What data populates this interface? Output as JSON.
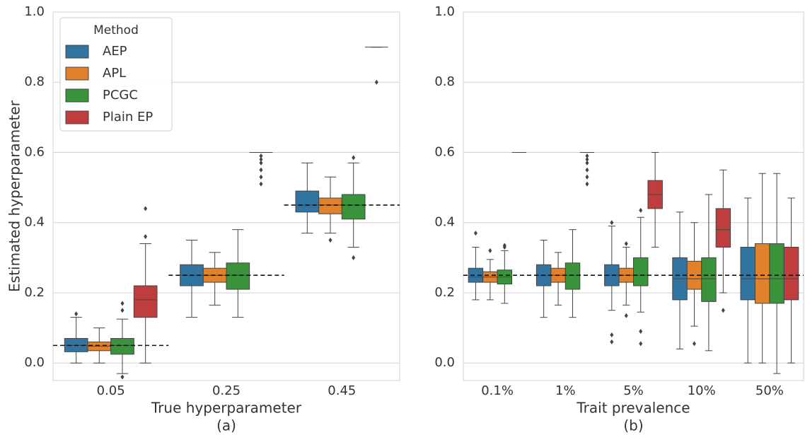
{
  "chart_data": [
    {
      "type": "box",
      "ylabel": "Estimated hyperparameter",
      "xlabel": "True hyperparameter",
      "caption": "(a)",
      "categories": [
        "0.05",
        "0.25",
        "0.45"
      ],
      "ylim": [
        -0.05,
        1.0
      ],
      "yticks": [
        {
          "value": 0,
          "label": "0.0"
        },
        0.2,
        0.4,
        0.6,
        0.8,
        {
          "value": 1,
          "label": "1.0"
        }
      ],
      "grid": true,
      "legend": "upper left",
      "legend_title": "Method",
      "reference": [
        0.05,
        0.25,
        0.45
      ],
      "series": [
        {
          "name": "AEP",
          "color": "#3274a1",
          "boxes": [
            {
              "min": 0,
              "q1": 0.032,
              "median": 0.05,
              "q3": 0.07,
              "max": 0.13,
              "outliers": [
                0.14
              ]
            },
            {
              "min": 0.13,
              "q1": 0.22,
              "median": 0.25,
              "q3": 0.28,
              "max": 0.35,
              "outliers": []
            },
            {
              "min": 0.37,
              "q1": 0.43,
              "median": 0.45,
              "q3": 0.49,
              "max": 0.57,
              "outliers": []
            }
          ]
        },
        {
          "name": "APL",
          "color": "#e1812c",
          "boxes": [
            {
              "min": 0,
              "q1": 0.035,
              "median": 0.048,
              "q3": 0.06,
              "max": 0.1,
              "outliers": []
            },
            {
              "min": 0.165,
              "q1": 0.23,
              "median": 0.25,
              "q3": 0.27,
              "max": 0.315,
              "outliers": []
            },
            {
              "min": 0.37,
              "q1": 0.425,
              "median": 0.45,
              "q3": 0.47,
              "max": 0.53,
              "outliers": [
                0.35
              ]
            }
          ]
        },
        {
          "name": "PCGC",
          "color": "#3a923a",
          "boxes": [
            {
              "min": -0.03,
              "q1": 0.025,
              "median": 0.05,
              "q3": 0.07,
              "max": 0.125,
              "outliers": [
                0.15,
                0.17,
                -0.04
              ]
            },
            {
              "min": 0.13,
              "q1": 0.21,
              "median": 0.25,
              "q3": 0.285,
              "max": 0.38,
              "outliers": []
            },
            {
              "min": 0.33,
              "q1": 0.41,
              "median": 0.45,
              "q3": 0.48,
              "max": 0.57,
              "outliers": [
                0.585,
                0.3
              ]
            }
          ]
        },
        {
          "name": "Plain EP",
          "color": "#c03d3e",
          "boxes": [
            {
              "min": 0,
              "q1": 0.13,
              "median": 0.18,
              "q3": 0.22,
              "max": 0.34,
              "outliers": [
                0.36,
                0.44
              ]
            },
            {
              "min": 0.6,
              "q1": 0.6,
              "median": 0.6,
              "q3": 0.6,
              "max": 0.6,
              "outliers": [
                0.51,
                0.53,
                0.55,
                0.57,
                0.58,
                0.59
              ]
            },
            {
              "min": 0.9,
              "q1": 0.9,
              "median": 0.9,
              "q3": 0.9,
              "max": 0.9,
              "outliers": [
                0.8
              ]
            }
          ]
        }
      ]
    },
    {
      "type": "box",
      "xlabel": "Trait prevalence",
      "caption": "(b)",
      "categories": [
        "0.1%",
        "1%",
        "5%",
        "10%",
        "50%"
      ],
      "ylim": [
        -0.05,
        1.0
      ],
      "yticks": [
        {
          "value": 0,
          "label": "0.0"
        },
        0.2,
        0.4,
        0.6,
        0.8,
        {
          "value": 1,
          "label": "1.0"
        }
      ],
      "grid": true,
      "hline": 0.25,
      "series": [
        {
          "color": "#3274a1",
          "boxes": [
            {
              "min": 0.18,
              "q1": 0.23,
              "median": 0.245,
              "q3": 0.27,
              "max": 0.33,
              "outliers": [
                0.37
              ]
            },
            {
              "min": 0.13,
              "q1": 0.22,
              "median": 0.25,
              "q3": 0.28,
              "max": 0.35,
              "outliers": []
            },
            {
              "min": 0.15,
              "q1": 0.22,
              "median": 0.25,
              "q3": 0.28,
              "max": 0.39,
              "outliers": [
                0.4,
                0.08,
                0.06
              ]
            },
            {
              "min": 0.04,
              "q1": 0.18,
              "median": 0.24,
              "q3": 0.3,
              "max": 0.43,
              "outliers": []
            },
            {
              "min": 0,
              "q1": 0.18,
              "median": 0.24,
              "q3": 0.33,
              "max": 0.47,
              "outliers": []
            }
          ]
        },
        {
          "color": "#e1812c",
          "boxes": [
            {
              "min": 0.18,
              "q1": 0.23,
              "median": 0.245,
              "q3": 0.26,
              "max": 0.295,
              "outliers": [
                0.32
              ]
            },
            {
              "min": 0.165,
              "q1": 0.23,
              "median": 0.25,
              "q3": 0.27,
              "max": 0.315,
              "outliers": []
            },
            {
              "min": 0.165,
              "q1": 0.23,
              "median": 0.25,
              "q3": 0.27,
              "max": 0.33,
              "outliers": [
                0.34,
                0.135
              ]
            },
            {
              "min": 0.105,
              "q1": 0.21,
              "median": 0.24,
              "q3": 0.29,
              "max": 0.4,
              "outliers": [
                0.055
              ]
            },
            {
              "min": 0,
              "q1": 0.17,
              "median": 0.24,
              "q3": 0.34,
              "max": 0.54,
              "outliers": []
            }
          ]
        },
        {
          "color": "#3a923a",
          "boxes": [
            {
              "min": 0.17,
              "q1": 0.225,
              "median": 0.245,
              "q3": 0.265,
              "max": 0.32,
              "outliers": [
                0.33,
                0.335
              ]
            },
            {
              "min": 0.13,
              "q1": 0.21,
              "median": 0.25,
              "q3": 0.285,
              "max": 0.38,
              "outliers": []
            },
            {
              "min": 0.145,
              "q1": 0.22,
              "median": 0.25,
              "q3": 0.3,
              "max": 0.415,
              "outliers": [
                0.435,
                0.09,
                0.055
              ]
            },
            {
              "min": 0.035,
              "q1": 0.175,
              "median": 0.24,
              "q3": 0.3,
              "max": 0.48,
              "outliers": []
            },
            {
              "min": -0.03,
              "q1": 0.17,
              "median": 0.24,
              "q3": 0.34,
              "max": 0.54,
              "outliers": []
            }
          ]
        },
        {
          "color": "#c03d3e",
          "boxes": [
            {
              "min": 0.6,
              "q1": 0.6,
              "median": 0.6,
              "q3": 0.6,
              "max": 0.6,
              "outliers": []
            },
            {
              "min": 0.6,
              "q1": 0.6,
              "median": 0.6,
              "q3": 0.6,
              "max": 0.6,
              "outliers": [
                0.51,
                0.53,
                0.55,
                0.57,
                0.58,
                0.59
              ]
            },
            {
              "min": 0.33,
              "q1": 0.44,
              "median": 0.48,
              "q3": 0.52,
              "max": 0.6,
              "outliers": []
            },
            {
              "min": 0.2,
              "q1": 0.33,
              "median": 0.38,
              "q3": 0.44,
              "max": 0.55,
              "outliers": [
                0.15
              ]
            },
            {
              "min": 0,
              "q1": 0.18,
              "median": 0.24,
              "q3": 0.33,
              "max": 0.47,
              "outliers": []
            }
          ]
        }
      ]
    }
  ]
}
